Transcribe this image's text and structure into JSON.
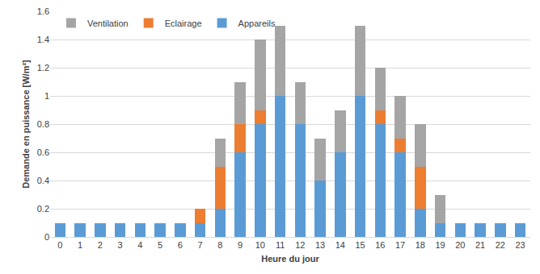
{
  "chart_data": {
    "type": "bar",
    "stacked": true,
    "x_label": "Heure du jour",
    "y_label": "Demande en puissance [W/m²]",
    "categories": [
      "0",
      "1",
      "2",
      "3",
      "4",
      "5",
      "6",
      "7",
      "8",
      "9",
      "10",
      "11",
      "12",
      "13",
      "14",
      "15",
      "16",
      "17",
      "18",
      "19",
      "20",
      "21",
      "22",
      "23"
    ],
    "series": [
      {
        "name": "Appareils",
        "color": "#5b9bd5",
        "values": [
          0.1,
          0.1,
          0.1,
          0.1,
          0.1,
          0.1,
          0.1,
          0.1,
          0.2,
          0.6,
          0.8,
          1.0,
          0.8,
          0.4,
          0.6,
          1.0,
          0.8,
          0.6,
          0.2,
          0.1,
          0.1,
          0.1,
          0.1,
          0.1
        ]
      },
      {
        "name": "Eclairage",
        "color": "#ed7d31",
        "values": [
          0,
          0,
          0,
          0,
          0,
          0,
          0,
          0.1,
          0.3,
          0.2,
          0.1,
          0,
          0,
          0,
          0,
          0,
          0.1,
          0.1,
          0.3,
          0,
          0,
          0,
          0,
          0
        ]
      },
      {
        "name": "Ventilation",
        "color": "#a5a5a5",
        "values": [
          0,
          0,
          0,
          0,
          0,
          0,
          0,
          0,
          0.2,
          0.3,
          0.5,
          0.5,
          0.3,
          0.3,
          0.3,
          0.5,
          0.3,
          0.3,
          0.3,
          0.2,
          0,
          0,
          0,
          0
        ]
      }
    ],
    "ylim": [
      0,
      1.6
    ],
    "yticks": [
      0,
      0.2,
      0.4,
      0.6,
      0.8,
      1,
      1.2,
      1.4,
      1.6
    ],
    "grid": true,
    "legend": "top left"
  }
}
